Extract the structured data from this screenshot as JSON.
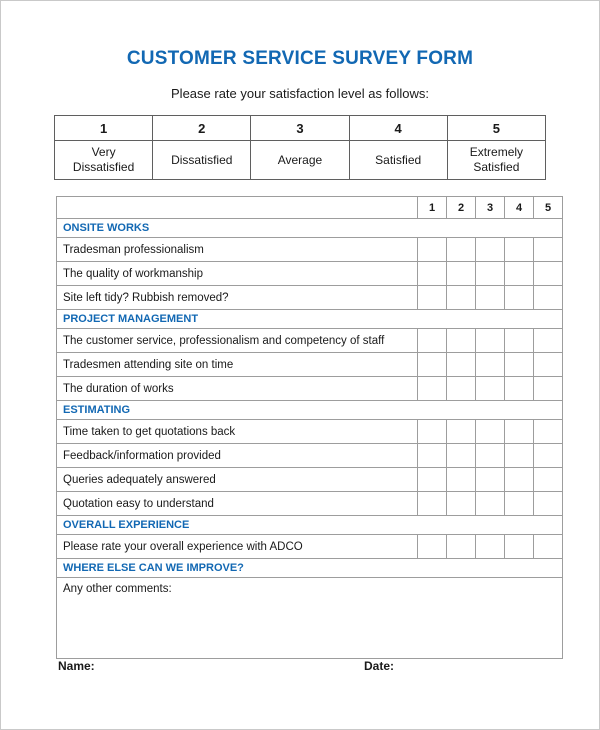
{
  "page": {
    "title": "CUSTOMER SERVICE SURVEY FORM",
    "subtitle": "Please rate your satisfaction level as follows:"
  },
  "colors": {
    "accent_blue": "#1268b3",
    "text": "#1a1a1a"
  },
  "rating_legend": {
    "scores": [
      "1",
      "2",
      "3",
      "4",
      "5"
    ],
    "labels": [
      "Very Dissatisfied",
      "Dissatisfied",
      "Average",
      "Satisfied",
      "Extremely Satisfied"
    ]
  },
  "survey": {
    "rating_columns": [
      "1",
      "2",
      "3",
      "4",
      "5"
    ],
    "sections": [
      {
        "header": "ONSITE WORKS",
        "rows": [
          "Tradesman professionalism",
          "The quality of workmanship",
          "Site left tidy? Rubbish removed?"
        ]
      },
      {
        "header": "PROJECT MANAGEMENT",
        "rows": [
          "The customer service, professionalism and competency of staff",
          "Tradesmen attending site on time",
          "The duration of works"
        ]
      },
      {
        "header": "ESTIMATING",
        "rows": [
          "Time taken to get quotations back",
          "Feedback/information provided",
          "Queries adequately answered",
          "Quotation easy to understand"
        ]
      },
      {
        "header": "OVERALL EXPERIENCE",
        "rows": [
          "Please rate your overall experience with ADCO"
        ]
      },
      {
        "header": "WHERE ELSE CAN WE IMPROVE?",
        "rows": []
      }
    ],
    "comments_label": "Any other comments:"
  },
  "footer": {
    "name_label": "Name:",
    "date_label": "Date:"
  }
}
